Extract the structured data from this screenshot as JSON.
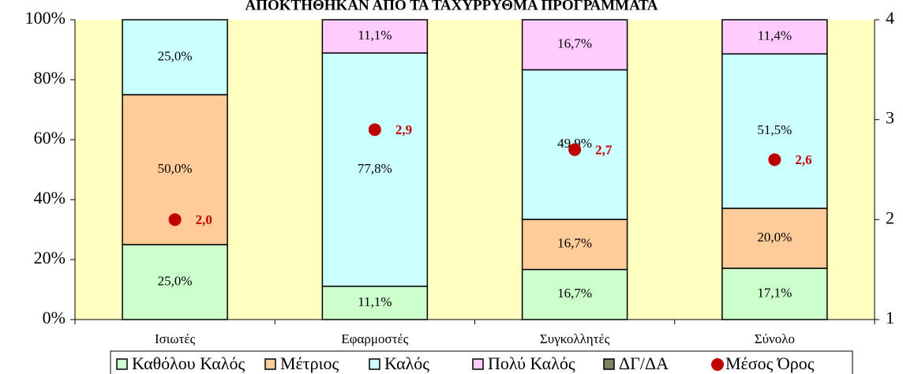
{
  "chart_data": {
    "type": "bar",
    "stacked": true,
    "title": "ΑΠΟΚΤΗΘΗΚΑΝ ΑΠΟ ΤΑ ΤΑΧΥΡΡΥΘΜΑ ΠΡΟΓΡΑΜΜΑΤΑ",
    "categories": [
      "Ισιωτές",
      "Εφαρμοστές",
      "Συγκολλητές",
      "Σύνολο"
    ],
    "series": [
      {
        "name": "Καθόλου Καλός",
        "color": "#ccffcc",
        "values": [
          25.0,
          11.1,
          16.7,
          17.1
        ],
        "value_labels": [
          "25,0%",
          "11,1%",
          "16,7%",
          "17,1%"
        ]
      },
      {
        "name": "Μέτριος",
        "color": "#ffcc99",
        "values": [
          50.0,
          0,
          16.7,
          20.0
        ],
        "value_labels": [
          "50,0%",
          null,
          "16,7%",
          "20,0%"
        ]
      },
      {
        "name": "Καλός",
        "color": "#ccffff",
        "values": [
          25.0,
          77.8,
          49.9,
          51.5
        ],
        "value_labels": [
          "25,0%",
          "77,8%",
          "49,9%",
          "51,5%"
        ]
      },
      {
        "name": "Πολύ Καλός",
        "color": "#ffccff",
        "values": [
          0,
          11.1,
          16.7,
          11.4
        ],
        "value_labels": [
          null,
          "11,1%",
          "16,7%",
          "11,4%"
        ]
      },
      {
        "name": "ΔΓ/ΔΑ",
        "color": "#808060",
        "values": [
          0,
          0,
          0,
          0
        ],
        "value_labels": [
          null,
          null,
          null,
          null
        ]
      },
      {
        "name": "Μέσος Όρος",
        "type": "scatter",
        "axis": "y2",
        "color": "#c00000",
        "values": [
          2.0,
          2.9,
          2.7,
          2.6
        ],
        "value_labels": [
          "2,0",
          "2,9",
          "2,7",
          "2,6"
        ]
      }
    ],
    "ylim": [
      0,
      100
    ],
    "yticks": [
      {
        "value": 0,
        "label": "0%"
      },
      {
        "value": 20,
        "label": "20%"
      },
      {
        "value": 40,
        "label": "40%"
      },
      {
        "value": 60,
        "label": "60%"
      },
      {
        "value": 80,
        "label": "80%"
      },
      {
        "value": 100,
        "label": "100%"
      }
    ],
    "y2lim": [
      1,
      4
    ],
    "y2ticks": [
      1,
      2,
      3,
      4
    ],
    "plot_background": "#ffffc0",
    "legend": "bottom"
  }
}
